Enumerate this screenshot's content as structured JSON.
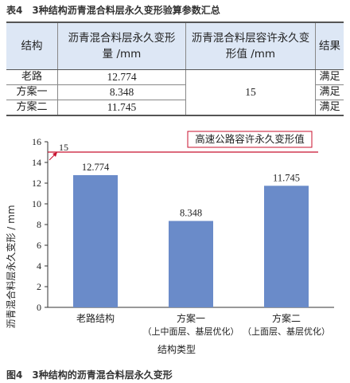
{
  "table": {
    "caption": "表4　3种结构沥青混合料层永久变形验算参数汇总",
    "headers": [
      "结构",
      "沥青混合料层永久变形量 /mm",
      "沥青混合料层容许永久变形值 /mm",
      "结果"
    ],
    "rows": [
      {
        "name": "老路",
        "value": "12.774",
        "result": "满足"
      },
      {
        "name": "方案一",
        "value": "8.348",
        "result": "满足"
      },
      {
        "name": "方案二",
        "value": "11.745",
        "result": "满足"
      }
    ],
    "allowable": "15"
  },
  "chart_data": {
    "type": "bar",
    "categories": [
      "老路结构",
      "方案一",
      "方案二"
    ],
    "category_sublabels": [
      "",
      "（上中面层、基层优化）",
      "（上面层、基层优化）"
    ],
    "values": [
      12.774,
      8.348,
      11.745
    ],
    "value_labels": [
      "12.774",
      "8.348",
      "11.745"
    ],
    "xlabel": "结构类型",
    "ylabel": "沥青混合料层永久变形 / mm",
    "ylim": [
      0,
      16
    ],
    "yticks": [
      "0",
      "2",
      "4",
      "6",
      "8",
      "10",
      "12",
      "14",
      "16"
    ],
    "reference_line": {
      "value": 15,
      "label": "15",
      "annotation": "高速公路容许永久变形值",
      "color": "#c8102e"
    },
    "bar_color": "#6a8bc9",
    "grid": false
  },
  "figure": {
    "caption": "图4　3种结构的沥青混合料层永久变形"
  }
}
